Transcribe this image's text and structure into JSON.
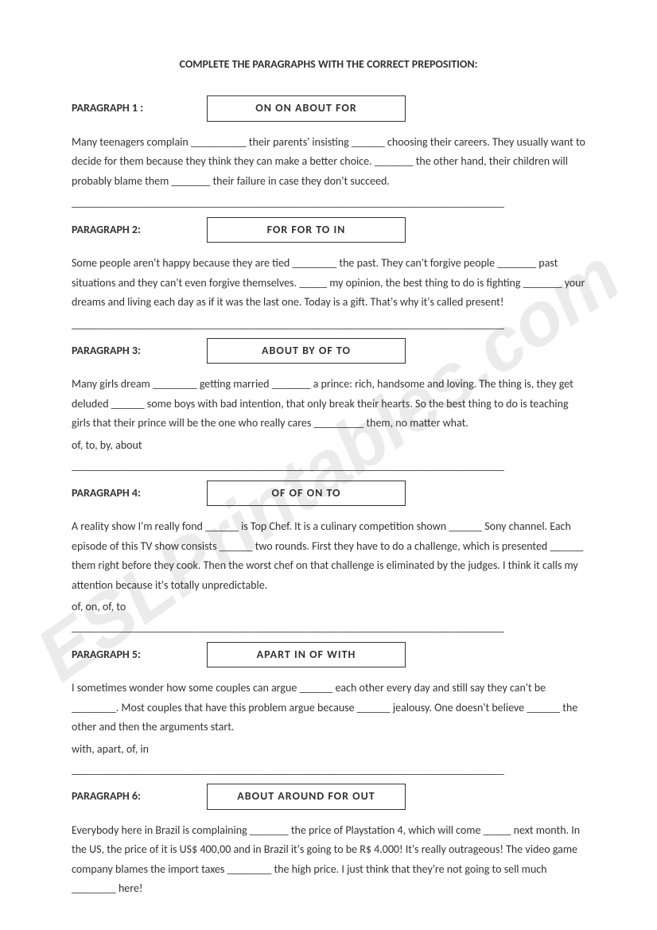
{
  "title": "COMPLETE THE PARAGRAPHS WITH THE CORRECT PREPOSITION:",
  "watermark": "ESLPrintables.com",
  "divider": "______________________________________________________________________________",
  "paragraphs": [
    {
      "label": "PARAGRAPH 1 :",
      "words": "ON     ON     ABOUT     FOR",
      "body": "Many teenagers complain __________ their parents' insisting ______ choosing their careers. They usually want to decide for them because they think they can make a better choice. _______ the other hand, their children will probably blame them _______ their failure in case they don't succeed.",
      "answers": ""
    },
    {
      "label": "PARAGRAPH 2:",
      "words": "FOR    FOR    TO    IN",
      "body": "Some people aren't happy because they are tied ________ the past. They can't forgive people _______ past situations and they can't even forgive themselves. _____ my opinion, the best thing to do is fighting _______ your dreams and living each day as if it was the last one. Today is a gift. That's why it's called present!",
      "answers": ""
    },
    {
      "label": "PARAGRAPH 3:",
      "words": "ABOUT     BY    OF    TO",
      "body": "Many girls dream ________ getting married _______ a prince: rich, handsome and loving. The thing is, they get deluded ______ some boys with bad intention, that only break their hearts. So the best thing to do is teaching girls that their prince will be the one who really cares _________ them, no matter what.",
      "answers": "of, to, by, about"
    },
    {
      "label": "PARAGRAPH 4:",
      "words": "OF    OF    ON    TO",
      "body": "A reality show I'm really fond ______ is Top Chef. It is a culinary competition shown ______ Sony channel. Each episode of this TV show consists ______ two rounds. First they have to do a challenge, which is presented ______ them right before they cook. Then the worst chef on that challenge is eliminated by the judges. I think it calls my attention because it's totally unpredictable.",
      "answers": "of, on, of, to"
    },
    {
      "label": "PARAGRAPH 5:",
      "words": "APART    IN    OF    WITH",
      "body": "I sometimes wonder how some couples can argue ______ each other every day and still say they can't be ________. Most couples that have this problem argue because ______ jealousy. One doesn't believe ______ the other and then the arguments start.",
      "answers": "with, apart, of, in"
    },
    {
      "label": "PARAGRAPH 6:",
      "words": "ABOUT    AROUND    FOR    OUT",
      "body": "Everybody here in Brazil is complaining _______ the price of Playstation 4, which will come _____ next month. In the US, the price of it is US$ 400,00 and in Brazil it's going to be R$ 4.000! It's really outrageous! The video game company blames the import taxes ________ the high price. I just think that they're not going to sell much ________ here!",
      "answers": ""
    }
  ]
}
